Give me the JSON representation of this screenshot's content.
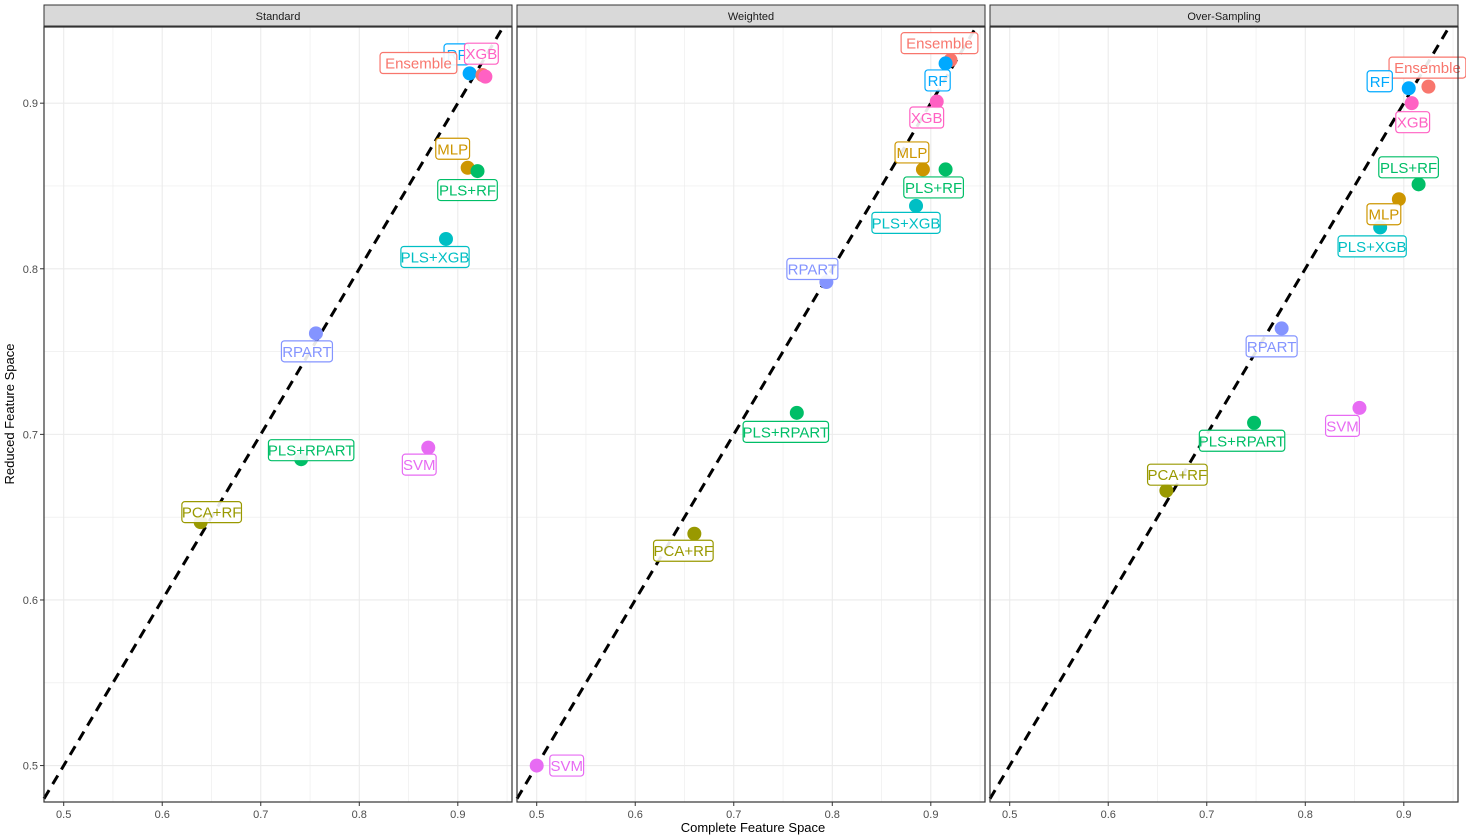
{
  "chart_data": {
    "type": "scatter",
    "xlabel": "Complete Feature Space",
    "ylabel": "Reduced Feature Space",
    "xlim": [
      0.48,
      0.955
    ],
    "ylim": [
      0.478,
      0.946
    ],
    "x_ticks": [
      "0.5",
      "0.6",
      "0.7",
      "0.8",
      "0.9"
    ],
    "y_ticks": [
      "0.5",
      "0.6",
      "0.7",
      "0.8",
      "0.9"
    ],
    "reference_line": "y = x (dashed)",
    "grid": true,
    "legend": "none",
    "colors": {
      "Ensemble": "#F8766D",
      "RF": "#00A9FF",
      "XGB": "#FF61C3",
      "MLP": "#CD9600",
      "PLS+RF": "#00BE67",
      "PLS+XGB": "#00BFC4",
      "RPART": "#8494FF",
      "PLS+RPART": "#00BE67",
      "SVM": "#E76BF3",
      "PCA+RF": "#999900"
    },
    "panels": [
      {
        "title": "Standard",
        "points": [
          {
            "label": "RF",
            "x": 0.912,
            "y": 0.918
          },
          {
            "label": "Ensemble",
            "x": 0.925,
            "y": 0.917
          },
          {
            "label": "XGB",
            "x": 0.928,
            "y": 0.916
          },
          {
            "label": "MLP",
            "x": 0.91,
            "y": 0.861
          },
          {
            "label": "PLS+RF",
            "x": 0.92,
            "y": 0.859
          },
          {
            "label": "PLS+XGB",
            "x": 0.888,
            "y": 0.818
          },
          {
            "label": "RPART",
            "x": 0.756,
            "y": 0.761
          },
          {
            "label": "SVM",
            "x": 0.87,
            "y": 0.692
          },
          {
            "label": "PLS+RPART",
            "x": 0.741,
            "y": 0.685
          },
          {
            "label": "PCA+RF",
            "x": 0.639,
            "y": 0.647
          }
        ]
      },
      {
        "title": "Weighted",
        "points": [
          {
            "label": "Ensemble",
            "x": 0.92,
            "y": 0.926
          },
          {
            "label": "RF",
            "x": 0.915,
            "y": 0.924
          },
          {
            "label": "XGB",
            "x": 0.906,
            "y": 0.901
          },
          {
            "label": "MLP",
            "x": 0.892,
            "y": 0.86
          },
          {
            "label": "PLS+RF",
            "x": 0.915,
            "y": 0.86
          },
          {
            "label": "PLS+XGB",
            "x": 0.885,
            "y": 0.838
          },
          {
            "label": "RPART",
            "x": 0.794,
            "y": 0.792
          },
          {
            "label": "PLS+RPART",
            "x": 0.764,
            "y": 0.713
          },
          {
            "label": "PCA+RF",
            "x": 0.66,
            "y": 0.64
          },
          {
            "label": "SVM",
            "x": 0.5,
            "y": 0.5
          }
        ]
      },
      {
        "title": "Over-Sampling",
        "points": [
          {
            "label": "Ensemble",
            "x": 0.925,
            "y": 0.91
          },
          {
            "label": "RF",
            "x": 0.905,
            "y": 0.909
          },
          {
            "label": "XGB",
            "x": 0.908,
            "y": 0.9
          },
          {
            "label": "PLS+RF",
            "x": 0.915,
            "y": 0.851
          },
          {
            "label": "MLP",
            "x": 0.895,
            "y": 0.842
          },
          {
            "label": "PLS+XGB",
            "x": 0.876,
            "y": 0.825
          },
          {
            "label": "RPART",
            "x": 0.776,
            "y": 0.764
          },
          {
            "label": "SVM",
            "x": 0.855,
            "y": 0.716
          },
          {
            "label": "PLS+RPART",
            "x": 0.748,
            "y": 0.707
          },
          {
            "label": "PCA+RF",
            "x": 0.659,
            "y": 0.666
          }
        ]
      }
    ]
  }
}
